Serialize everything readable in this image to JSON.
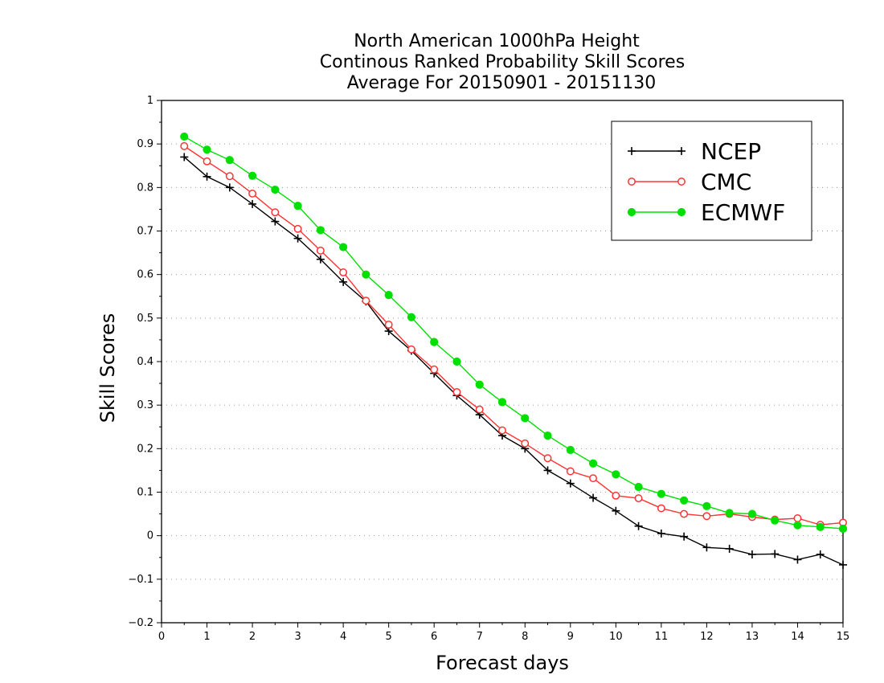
{
  "chart_data": {
    "type": "line",
    "title_lines": [
      "North American 1000hPa Height",
      "Continous Ranked Probability Skill Scores",
      "Average For 20150901 - 20151130"
    ],
    "xlabel": "Forecast days",
    "ylabel": "Skill Scores",
    "xlim": [
      0,
      15
    ],
    "ylim": [
      -0.2,
      1
    ],
    "xticks": [
      "0",
      "1",
      "2",
      "3",
      "4",
      "5",
      "6",
      "7",
      "8",
      "9",
      "10",
      "11",
      "12",
      "13",
      "14",
      "15"
    ],
    "yticks": [
      "−0.2",
      "−0.1",
      "0",
      "0.1",
      "0.2",
      "0.3",
      "0.4",
      "0.5",
      "0.6",
      "0.7",
      "0.8",
      "0.9",
      "1"
    ],
    "grid": "horizontal dotted",
    "legend_position": "top-right",
    "x": [
      0.5,
      1,
      1.5,
      2,
      2.5,
      3,
      3.5,
      4,
      4.5,
      5,
      5.5,
      6,
      6.5,
      7,
      7.5,
      8,
      8.5,
      9,
      9.5,
      10,
      10.5,
      11,
      11.5,
      12,
      12.5,
      13,
      13.5,
      14,
      14.5,
      15
    ],
    "series": [
      {
        "name": "NCEP",
        "color": "#000000",
        "marker": "plus",
        "values": [
          0.87,
          0.825,
          0.8,
          0.762,
          0.722,
          0.683,
          0.635,
          0.583,
          0.538,
          0.47,
          0.425,
          0.373,
          0.322,
          0.278,
          0.23,
          0.2,
          0.15,
          0.12,
          0.087,
          0.057,
          0.022,
          0.005,
          -0.002,
          -0.027,
          -0.03,
          -0.043,
          -0.042,
          -0.055,
          -0.043,
          -0.067
        ]
      },
      {
        "name": "CMC",
        "color": "#ff3333",
        "marker": "open-circle",
        "values": [
          0.895,
          0.86,
          0.826,
          0.786,
          0.743,
          0.705,
          0.655,
          0.605,
          0.54,
          0.485,
          0.428,
          0.382,
          0.33,
          0.29,
          0.242,
          0.212,
          0.178,
          0.148,
          0.132,
          0.092,
          0.086,
          0.063,
          0.05,
          0.045,
          0.05,
          0.043,
          0.037,
          0.04,
          0.025,
          0.03
        ]
      },
      {
        "name": "ECMWF",
        "color": "#00e000",
        "marker": "filled-circle",
        "values": [
          0.917,
          0.887,
          0.863,
          0.827,
          0.795,
          0.758,
          0.702,
          0.663,
          0.6,
          0.553,
          0.502,
          0.445,
          0.4,
          0.347,
          0.307,
          0.27,
          0.23,
          0.197,
          0.166,
          0.141,
          0.112,
          0.096,
          0.081,
          0.068,
          0.052,
          0.05,
          0.035,
          0.024,
          0.02,
          0.016
        ]
      }
    ]
  }
}
